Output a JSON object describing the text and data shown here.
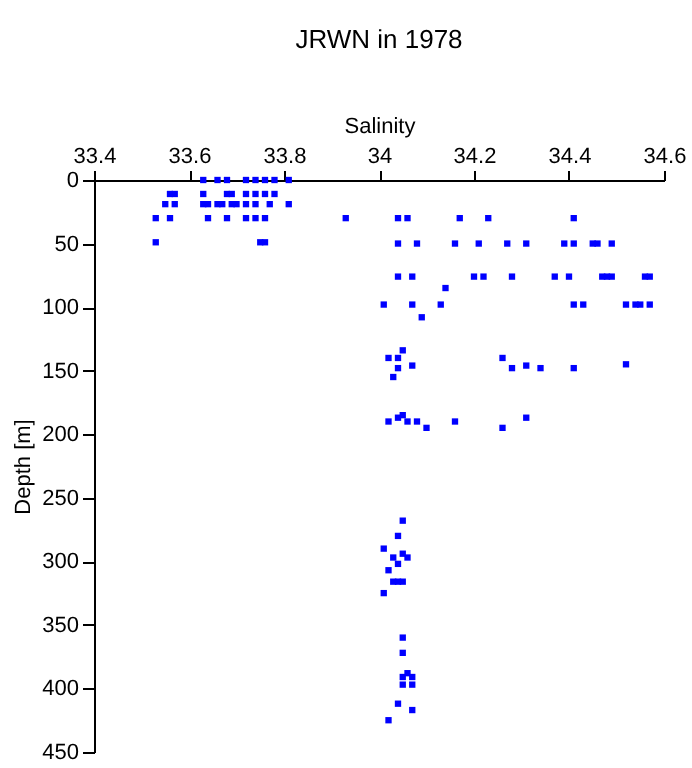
{
  "chart_data": {
    "type": "scatter",
    "title": "JRWN in 1978",
    "xlabel": "Salinity",
    "ylabel": "Depth [m]",
    "xlim": [
      33.4,
      34.6
    ],
    "xticks": [
      33.4,
      33.6,
      33.8,
      34,
      34.2,
      34.4,
      34.6
    ],
    "ylim": [
      450,
      0
    ],
    "yticks": [
      0,
      50,
      100,
      150,
      200,
      250,
      300,
      350,
      400,
      450
    ],
    "grid": false,
    "marker": "square",
    "x": [
      33.63,
      33.66,
      33.68,
      33.72,
      33.74,
      33.76,
      33.78,
      33.81,
      33.56,
      33.57,
      33.63,
      33.68,
      33.69,
      33.72,
      33.74,
      33.76,
      33.78,
      33.55,
      33.57,
      33.63,
      33.64,
      33.66,
      33.67,
      33.69,
      33.7,
      33.72,
      33.74,
      33.77,
      33.81,
      33.53,
      33.56,
      33.64,
      33.68,
      33.72,
      33.74,
      33.76,
      33.53,
      33.75,
      33.76,
      33.93,
      34.04,
      34.06,
      34.17,
      34.23,
      34.41,
      34.04,
      34.08,
      34.16,
      34.21,
      34.27,
      34.31,
      34.39,
      34.41,
      34.45,
      34.46,
      34.49,
      34.04,
      34.07,
      34.2,
      34.22,
      34.28,
      34.37,
      34.4,
      34.47,
      34.48,
      34.49,
      34.56,
      34.57,
      34.14,
      34.01,
      34.07,
      34.13,
      34.41,
      34.43,
      34.52,
      34.54,
      34.55,
      34.57,
      34.09,
      34.05,
      34.02,
      34.04,
      34.07,
      34.04,
      34.26,
      34.28,
      34.31,
      34.34,
      34.41,
      34.52,
      34.03,
      34.05,
      34.04,
      34.02,
      34.06,
      34.08,
      34.1,
      34.16,
      34.26,
      34.31,
      34.05,
      34.04,
      34.01,
      34.05,
      34.03,
      34.06,
      34.04,
      34.02,
      34.03,
      34.04,
      34.05,
      34.01,
      34.05,
      34.05,
      34.06,
      34.05,
      34.07,
      34.05,
      34.07,
      34.04,
      34.07,
      34.02
    ],
    "series": [
      {
        "color": "#0000ff",
        "values": [
          0,
          0,
          0,
          0,
          0,
          0,
          0,
          0,
          11,
          11,
          11,
          11,
          11,
          11,
          11,
          11,
          11,
          19,
          19,
          19,
          19,
          19,
          19,
          19,
          19,
          19,
          19,
          19,
          19,
          30,
          30,
          30,
          30,
          30,
          30,
          30,
          49,
          49,
          49,
          30,
          30,
          30,
          30,
          30,
          30,
          50,
          50,
          50,
          50,
          50,
          50,
          50,
          50,
          50,
          50,
          50,
          76,
          76,
          76,
          76,
          76,
          76,
          76,
          76,
          76,
          76,
          76,
          76,
          85,
          98,
          98,
          98,
          98,
          98,
          98,
          98,
          98,
          98,
          108,
          134,
          140,
          140,
          146,
          148,
          140,
          148,
          146,
          148,
          148,
          145,
          155,
          185,
          187,
          190,
          190,
          190,
          195,
          190,
          195,
          187,
          268,
          280,
          290,
          294,
          297,
          297,
          302,
          307,
          316,
          316,
          316,
          325,
          360,
          372,
          388,
          391,
          391,
          397,
          397,
          412,
          417,
          425
        ]
      }
    ]
  }
}
